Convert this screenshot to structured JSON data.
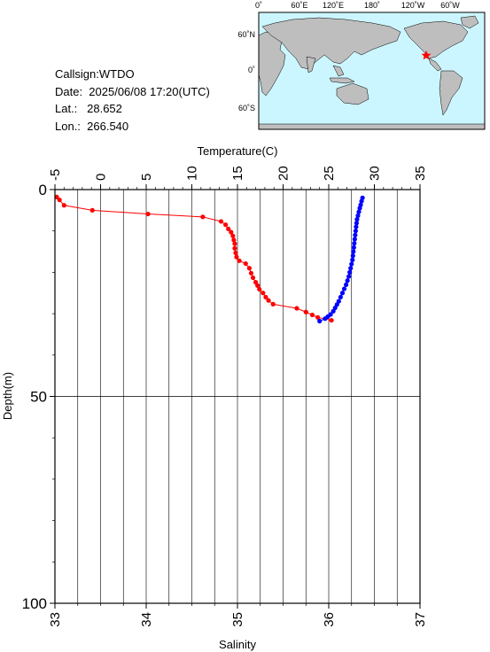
{
  "info": {
    "callsign": "Callsign:WTDO",
    "date": "Date:  2025/06/08 17:20(UTC)",
    "lat": "Lat.:   28.652",
    "lon": "Lon.:  266.540"
  },
  "map": {
    "top_labels": [
      "0˚",
      "60˚E",
      "120˚E",
      "180˚",
      "120˚W",
      "60˚W"
    ],
    "left_labels": [
      "60˚N",
      "0˚",
      "60˚S"
    ],
    "station_marker": "red-star",
    "ocean_color": "#ccf6ff",
    "land_color": "#bebebe"
  },
  "chart_data": {
    "type": "scatter",
    "x_top_label": "Temperature(C)",
    "x_bottom_label": "Salinity",
    "ylabel": "Depth(m)",
    "temperature_ticks": [
      "-5",
      "0",
      "5",
      "10",
      "15",
      "20",
      "25",
      "30",
      "35"
    ],
    "temperature_range": [
      -5,
      35
    ],
    "salinity_ticks": [
      "33",
      "34",
      "35",
      "36",
      "37"
    ],
    "salinity_range": [
      33,
      37
    ],
    "depth_ticks": [
      "0",
      "50",
      "100"
    ],
    "depth_range": [
      0,
      100
    ],
    "series": [
      {
        "color": "#ff0000",
        "line": true,
        "points": [
          [
            33.02,
            1.8
          ],
          [
            33.05,
            2.5
          ],
          [
            33.1,
            3.8
          ],
          [
            33.41,
            5.0
          ],
          [
            34.02,
            5.9
          ],
          [
            34.62,
            6.6
          ],
          [
            34.82,
            7.7
          ],
          [
            34.87,
            8.5
          ],
          [
            34.9,
            9.5
          ],
          [
            34.93,
            10.3
          ],
          [
            34.95,
            11.2
          ],
          [
            34.96,
            12.2
          ],
          [
            34.97,
            13.1
          ],
          [
            34.97,
            14.2
          ],
          [
            34.98,
            15.3
          ],
          [
            34.99,
            16.3
          ],
          [
            35.02,
            17.2
          ],
          [
            35.09,
            17.9
          ],
          [
            35.13,
            19.0
          ],
          [
            35.15,
            20.2
          ],
          [
            35.17,
            21.3
          ],
          [
            35.2,
            22.4
          ],
          [
            35.22,
            23.2
          ],
          [
            35.24,
            24.1
          ],
          [
            35.28,
            25.0
          ],
          [
            35.31,
            26.0
          ],
          [
            35.34,
            26.8
          ],
          [
            35.39,
            27.7
          ],
          [
            35.65,
            28.7
          ],
          [
            35.75,
            29.6
          ],
          [
            35.82,
            30.3
          ],
          [
            35.88,
            30.9
          ],
          [
            36.03,
            31.6
          ]
        ]
      },
      {
        "color": "#0000ff",
        "line": true,
        "points": [
          [
            28.7,
            2.0
          ],
          [
            28.6,
            2.8
          ],
          [
            28.5,
            3.7
          ],
          [
            28.4,
            4.5
          ],
          [
            28.3,
            5.4
          ],
          [
            28.2,
            6.3
          ],
          [
            28.1,
            7.2
          ],
          [
            28.05,
            8.1
          ],
          [
            28.0,
            9.0
          ],
          [
            27.95,
            10.0
          ],
          [
            27.9,
            11.0
          ],
          [
            27.85,
            12.0
          ],
          [
            27.8,
            13.0
          ],
          [
            27.75,
            14.0
          ],
          [
            27.7,
            15.0
          ],
          [
            27.65,
            16.0
          ],
          [
            27.6,
            17.0
          ],
          [
            27.5,
            18.0
          ],
          [
            27.4,
            19.0
          ],
          [
            27.3,
            20.0
          ],
          [
            27.2,
            21.0
          ],
          [
            27.05,
            22.0
          ],
          [
            26.9,
            23.0
          ],
          [
            26.7,
            24.0
          ],
          [
            26.5,
            25.0
          ],
          [
            26.3,
            26.0
          ],
          [
            26.1,
            27.0
          ],
          [
            25.9,
            27.8
          ],
          [
            25.7,
            28.6
          ],
          [
            25.5,
            29.4
          ],
          [
            25.2,
            30.2
          ],
          [
            24.9,
            30.7
          ],
          [
            24.6,
            31.2
          ],
          [
            24.0,
            31.8
          ]
        ]
      }
    ]
  }
}
